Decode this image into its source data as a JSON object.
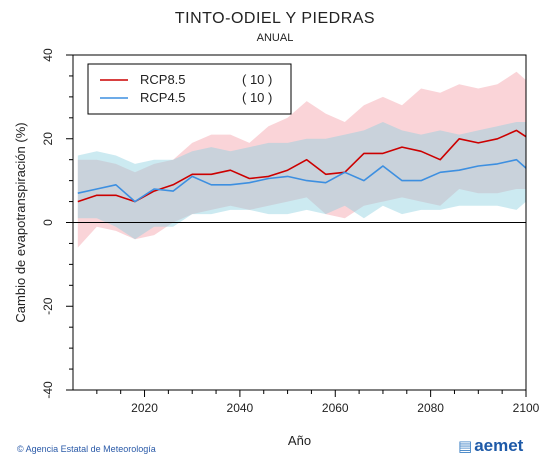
{
  "chart_data": {
    "type": "line",
    "title": "TINTO-ODIEL Y PIEDRAS",
    "subtitle": "ANUAL",
    "xlabel": "Año",
    "ylabel": "Cambio de evapotranspiración (%)",
    "xlim": [
      2005,
      2100
    ],
    "ylim": [
      -40,
      40
    ],
    "xticks": [
      2020,
      2040,
      2060,
      2080,
      2100
    ],
    "yticks": [
      40,
      20,
      0,
      -20,
      -40
    ],
    "grid": false,
    "legend_position": "top-left",
    "reference_line_y": 0,
    "x": [
      2006,
      2010,
      2014,
      2018,
      2022,
      2026,
      2030,
      2034,
      2038,
      2042,
      2046,
      2050,
      2054,
      2058,
      2062,
      2066,
      2070,
      2074,
      2078,
      2082,
      2086,
      2090,
      2094,
      2098,
      2100
    ],
    "series": [
      {
        "name": "RCP8.5",
        "count": "( 10 )",
        "color": "#cc0000",
        "band_color": "#f4a0a8",
        "values": [
          5,
          6.5,
          6.5,
          5,
          7.5,
          9,
          11.5,
          11.5,
          12.5,
          10.5,
          11,
          12.5,
          15,
          11.5,
          12,
          16.5,
          16.5,
          18,
          17,
          15,
          20,
          19,
          20,
          22,
          20.5
        ],
        "upper": [
          15,
          15,
          14,
          12,
          14,
          15,
          19,
          21,
          21,
          19,
          23,
          25,
          29,
          26,
          24,
          28,
          30,
          28,
          32,
          31,
          33,
          32,
          33,
          36,
          34
        ],
        "lower": [
          -6,
          -1,
          -2,
          -4,
          -3,
          0,
          2,
          3,
          4,
          3,
          4,
          5,
          6,
          2,
          1,
          4,
          5,
          6,
          5,
          4,
          8,
          7,
          7,
          8,
          8
        ]
      },
      {
        "name": "RCP4.5",
        "count": "( 10 )",
        "color": "#3d8fe0",
        "band_color": "#8fd0e0",
        "values": [
          7,
          8,
          9,
          5,
          8,
          7.5,
          11,
          9,
          9,
          9.5,
          10.5,
          11,
          10,
          9.5,
          12,
          10,
          13.5,
          10,
          10,
          12,
          12.5,
          13.5,
          14,
          15,
          13
        ],
        "upper": [
          16,
          17,
          16,
          14,
          15,
          15,
          17,
          18,
          17,
          18,
          19,
          19,
          20,
          20,
          21,
          22,
          24,
          22,
          21,
          22,
          21,
          22,
          23,
          24,
          24
        ],
        "lower": [
          1,
          1,
          -1,
          -4,
          -1,
          -1,
          2,
          2,
          3,
          3,
          2,
          2,
          3,
          2,
          4,
          1,
          4,
          2,
          3,
          3,
          4,
          4,
          4,
          3,
          5
        ]
      }
    ]
  },
  "footer": {
    "credit": "© Agencia Estatal de Meteorología",
    "logo": "aemet",
    "logo_icon": "aemet-logo-icon"
  }
}
